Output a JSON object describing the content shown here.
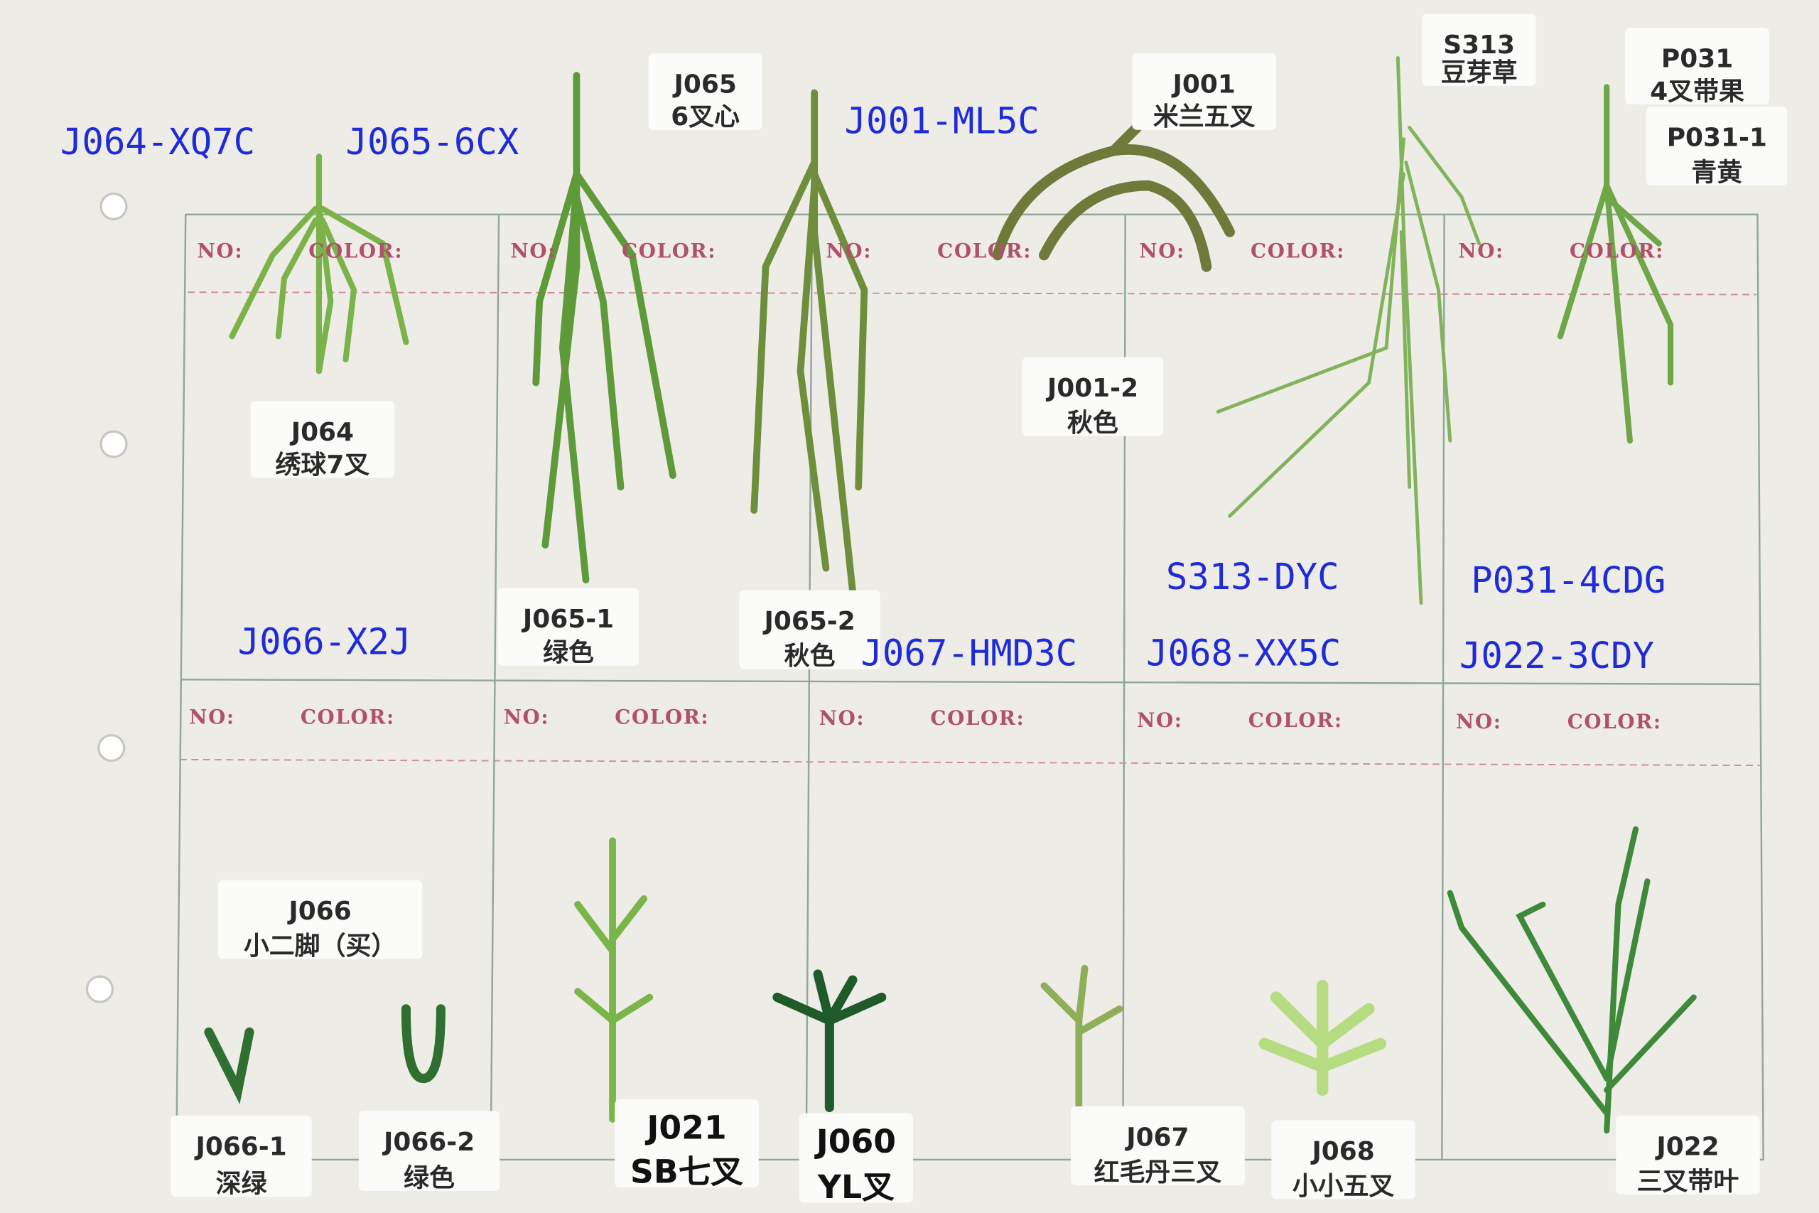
{
  "blue_labels": [
    "J064-XQ7C",
    "J065-6CX",
    "J001-ML5C",
    "S313-DYC",
    "P031-4CDG",
    "J066-X2J",
    "J067-HMD3C",
    "J068-XX5C",
    "J022-3CDY"
  ],
  "tags": [
    {
      "code": "J065",
      "name": "6叉心"
    },
    {
      "code": "J001",
      "name": "米兰五叉"
    },
    {
      "code": "S313",
      "name": "豆芽草"
    },
    {
      "code": "P031",
      "name": "4叉带果"
    },
    {
      "code": "P031-1",
      "name": "青黄"
    },
    {
      "code": "J064",
      "name": "绣球7叉"
    },
    {
      "code": "J001-2",
      "name": "秋色"
    },
    {
      "code": "J065-1",
      "name": "绿色"
    },
    {
      "code": "J065-2",
      "name": "秋色"
    },
    {
      "code": "J066",
      "name": "小二脚（买）"
    },
    {
      "code": "J066-1",
      "name": "深绿"
    },
    {
      "code": "J066-2",
      "name": "绿色"
    },
    {
      "code": "J021",
      "name": "SB七叉"
    },
    {
      "code": "J060",
      "name": "YL叉"
    },
    {
      "code": "J067",
      "name": "红毛丹三叉"
    },
    {
      "code": "J068",
      "name": "小小五叉"
    },
    {
      "code": "J022",
      "name": "三叉带叶"
    }
  ],
  "grid": {
    "cells": [
      {
        "no": "NO:",
        "color": "COLOR:"
      },
      {
        "no": "NO:",
        "color": "COLOR:"
      },
      {
        "no": "NO:",
        "color": "COLOR:"
      },
      {
        "no": "NO:",
        "color": "COLOR:"
      },
      {
        "no": "NO:",
        "color": "COLOR:"
      },
      {
        "no": "NO:",
        "color": "COLOR:"
      },
      {
        "no": "NO:",
        "color": "COLOR:"
      },
      {
        "no": "NO:",
        "color": "COLOR:"
      },
      {
        "no": "NO:",
        "color": "COLOR:"
      },
      {
        "no": "NO:",
        "color": "COLOR:"
      }
    ]
  }
}
